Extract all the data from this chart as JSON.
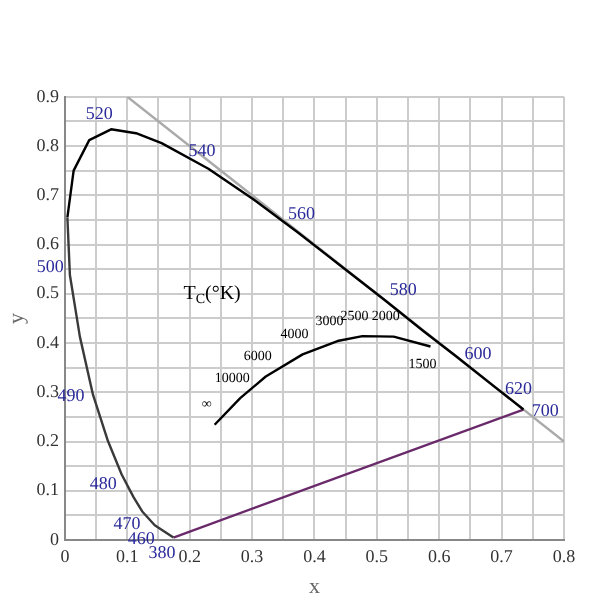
{
  "chart_data": {
    "type": "line",
    "xlabel": "x",
    "ylabel": "y",
    "xlim": [
      0,
      0.8
    ],
    "ylim": [
      0,
      0.9
    ],
    "xticks": [
      0.0,
      {
        "value": 0.05,
        "label": null
      },
      0.1,
      {
        "value": 0.15,
        "label": null
      },
      0.2,
      {
        "value": 0.25,
        "label": null
      },
      0.3,
      {
        "value": 0.35,
        "label": null
      },
      0.4,
      {
        "value": 0.45,
        "label": null
      },
      0.5,
      {
        "value": 0.55,
        "label": null
      },
      0.6,
      {
        "value": 0.65,
        "label": null
      },
      0.7,
      {
        "value": 0.75,
        "label": null
      },
      0.8
    ],
    "yticks": [
      0.0,
      {
        "value": 0.05,
        "label": null
      },
      0.1,
      {
        "value": 0.15,
        "label": null
      },
      0.2,
      {
        "value": 0.25,
        "label": null
      },
      0.3,
      {
        "value": 0.35,
        "label": null
      },
      0.4,
      {
        "value": 0.45,
        "label": null
      },
      0.5,
      {
        "value": 0.55,
        "label": null
      },
      0.6,
      {
        "value": 0.65,
        "label": null
      },
      0.7,
      {
        "value": 0.75,
        "label": null
      },
      0.8,
      {
        "value": 0.85,
        "label": null
      },
      0.9
    ],
    "grid": true,
    "marker": "none",
    "line_style": "solid",
    "series": [
      {
        "color": "#3a3a3a",
        "x": [
          0.004,
          0.008,
          0.024,
          0.045,
          0.069,
          0.091,
          0.11,
          0.124,
          0.144,
          0.174
        ],
        "values": [
          0.655,
          0.538,
          0.413,
          0.295,
          0.201,
          0.133,
          0.087,
          0.058,
          0.03,
          0.005
        ]
      },
      {
        "color": "#000000",
        "x": [
          0.004,
          0.014,
          0.039,
          0.074,
          0.114,
          0.155,
          0.23,
          0.302,
          0.373,
          0.444,
          0.513,
          0.575,
          0.627,
          0.692,
          0.735
        ],
        "values": [
          0.655,
          0.75,
          0.812,
          0.834,
          0.826,
          0.806,
          0.754,
          0.692,
          0.625,
          0.555,
          0.487,
          0.424,
          0.373,
          0.308,
          0.265
        ]
      },
      {
        "color": "#6a2a6a",
        "x": [
          0.174,
          0.735
        ],
        "values": [
          0.005,
          0.265
        ]
      },
      {
        "color": "#000000",
        "x": [
          0.24,
          0.281,
          0.322,
          0.381,
          0.437,
          0.477,
          0.527,
          0.586
        ],
        "values": [
          0.234,
          0.288,
          0.332,
          0.377,
          0.404,
          0.414,
          0.413,
          0.393
        ]
      },
      {
        "color": "#aaaaaa",
        "x": [
          0.1,
          0.8
        ],
        "values": [
          0.9,
          0.2
        ]
      }
    ],
    "annotations": [
      {
        "text": "520",
        "x": 0.074,
        "y": 0.834
      },
      {
        "text": "540",
        "x": 0.23,
        "y": 0.754
      },
      {
        "text": "560",
        "x": 0.373,
        "y": 0.625
      },
      {
        "text": "580",
        "x": 0.513,
        "y": 0.487
      },
      {
        "text": "600",
        "x": 0.627,
        "y": 0.373
      },
      {
        "text": "620",
        "x": 0.692,
        "y": 0.308
      },
      {
        "text": "700",
        "x": 0.735,
        "y": 0.265
      },
      {
        "text": "500",
        "x": 0.008,
        "y": 0.538
      },
      {
        "text": "490",
        "x": 0.045,
        "y": 0.295
      },
      {
        "text": "480",
        "x": 0.091,
        "y": 0.133
      },
      {
        "text": "470",
        "x": 0.124,
        "y": 0.058
      },
      {
        "text": "460",
        "x": 0.144,
        "y": 0.03
      },
      {
        "text": "380",
        "x": 0.174,
        "y": 0.005
      },
      "T$_{C}$(°K)",
      {
        "text": "10000",
        "x": 0.281,
        "y": 0.288
      },
      {
        "text": "6000",
        "x": 0.322,
        "y": 0.332
      },
      {
        "text": "4000",
        "x": 0.381,
        "y": 0.377
      },
      {
        "text": "3000",
        "x": 0.437,
        "y": 0.404
      },
      {
        "text": "2500",
        "x": 0.477,
        "y": 0.414
      },
      {
        "text": "2000",
        "x": 0.527,
        "y": 0.413
      },
      {
        "text": "1500",
        "x": 0.586,
        "y": 0.393
      },
      {
        "text": "∞",
        "x": 0.24,
        "y": 0.234
      }
    ]
  }
}
